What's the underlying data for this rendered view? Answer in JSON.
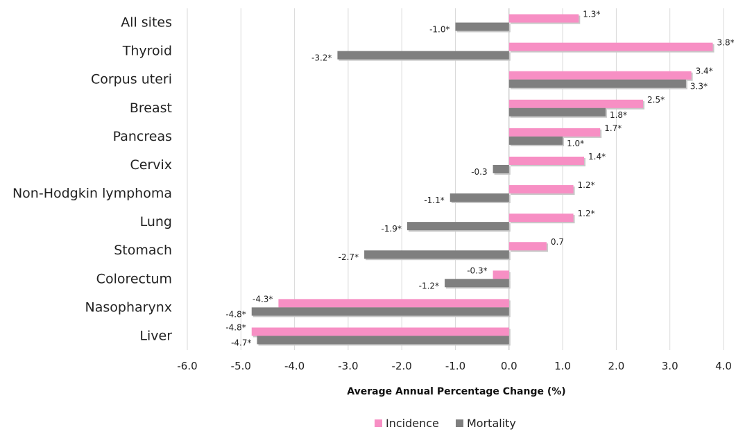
{
  "chart_data": {
    "type": "bar",
    "orientation": "horizontal",
    "title": "",
    "xlabel": "Average Annual Percentage Change (%)",
    "ylabel": "",
    "xlim": [
      -6.0,
      4.0
    ],
    "x_ticks": [
      "-6.0",
      "-5.0",
      "-4.0",
      "-3.0",
      "-2.0",
      "-1.0",
      "0.0",
      "1.0",
      "2.0",
      "3.0",
      "4.0"
    ],
    "grid": "vertical",
    "legend_position": "bottom",
    "categories": [
      "All sites",
      "Thyroid",
      "Corpus uteri",
      "Breast",
      "Pancreas",
      "Cervix",
      "Non-Hodgkin lymphoma",
      "Lung",
      "Stomach",
      "Colorectum",
      "Nasopharynx",
      "Liver"
    ],
    "series": [
      {
        "name": "Incidence",
        "color": "#F78FC4",
        "values": [
          1.3,
          3.8,
          3.4,
          2.5,
          1.7,
          1.4,
          1.2,
          1.2,
          0.7,
          -0.3,
          -4.3,
          -4.8
        ],
        "labels": [
          "1.3*",
          "3.8*",
          "3.4*",
          "2.5*",
          "1.7*",
          "1.4*",
          "1.2*",
          "1.2*",
          "0.7",
          "-0.3*",
          "-4.3*",
          "-4.8*"
        ]
      },
      {
        "name": "Mortality",
        "color": "#7F7F7F",
        "values": [
          -1.0,
          -3.2,
          3.3,
          1.8,
          1.0,
          -0.3,
          -1.1,
          -1.9,
          -2.7,
          -1.2,
          -4.8,
          -4.7
        ],
        "labels": [
          "-1.0*",
          "-3.2*",
          "3.3*",
          "1.8*",
          "1.0*",
          "-0.3",
          "-1.1*",
          "-1.9*",
          "-2.7*",
          "-1.2*",
          "-4.8*",
          "-4.7*"
        ]
      }
    ]
  }
}
